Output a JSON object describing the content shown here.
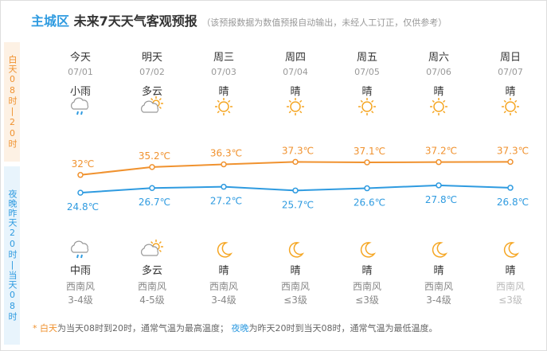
{
  "header": {
    "region": "主城区",
    "title": "未来7天天气客观预报",
    "note": "（该预报数据为数值预报自动输出，未经人工订正，仅供参考）"
  },
  "side": {
    "day": "白天08时|20时",
    "night": "夜晚昨天20时|当天08时"
  },
  "days": [
    {
      "weekday": "今天",
      "date": "07/01",
      "day_weather": "小雨",
      "night_weather": "中雨",
      "wind_dir": "西南风",
      "wind_level": "3-4级"
    },
    {
      "weekday": "明天",
      "date": "07/02",
      "day_weather": "多云",
      "night_weather": "多云",
      "wind_dir": "西南风",
      "wind_level": "4-5级"
    },
    {
      "weekday": "周三",
      "date": "07/03",
      "day_weather": "晴",
      "night_weather": "晴",
      "wind_dir": "西南风",
      "wind_level": "3-4级"
    },
    {
      "weekday": "周四",
      "date": "07/04",
      "day_weather": "晴",
      "night_weather": "晴",
      "wind_dir": "西南风",
      "wind_level": "≤3级"
    },
    {
      "weekday": "周五",
      "date": "07/05",
      "day_weather": "晴",
      "night_weather": "晴",
      "wind_dir": "西南风",
      "wind_level": "≤3级"
    },
    {
      "weekday": "周六",
      "date": "07/06",
      "day_weather": "晴",
      "night_weather": "晴",
      "wind_dir": "西南风",
      "wind_level": "3-4级"
    },
    {
      "weekday": "周日",
      "date": "07/07",
      "day_weather": "晴",
      "night_weather": "晴",
      "wind_dir": "西南风",
      "wind_level": "≤3级"
    }
  ],
  "chart_data": {
    "type": "line",
    "series": [
      {
        "color": "#f0922f",
        "values": [
          32,
          35.2,
          36.3,
          37.3,
          37.1,
          37.2,
          37.3
        ],
        "value_labels": [
          "32℃",
          "35.2℃",
          "36.3℃",
          "37.3℃",
          "37.1℃",
          "37.2℃",
          "37.3℃"
        ]
      },
      {
        "color": "#2f9be0",
        "values": [
          24.8,
          26.7,
          27.2,
          25.7,
          26.6,
          27.8,
          26.8
        ],
        "value_labels": [
          "24.8℃",
          "26.7℃",
          "27.2℃",
          "25.7℃",
          "26.6℃",
          "27.8℃",
          "26.8℃"
        ]
      }
    ]
  },
  "footer": {
    "star": "*",
    "day_term": "白天",
    "day_text": "为当天08时到20时，通常气温为最高温度；",
    "night_term": "夜晚",
    "night_text": "为昨天20时到当天08时，通常气温为最低温度。"
  }
}
